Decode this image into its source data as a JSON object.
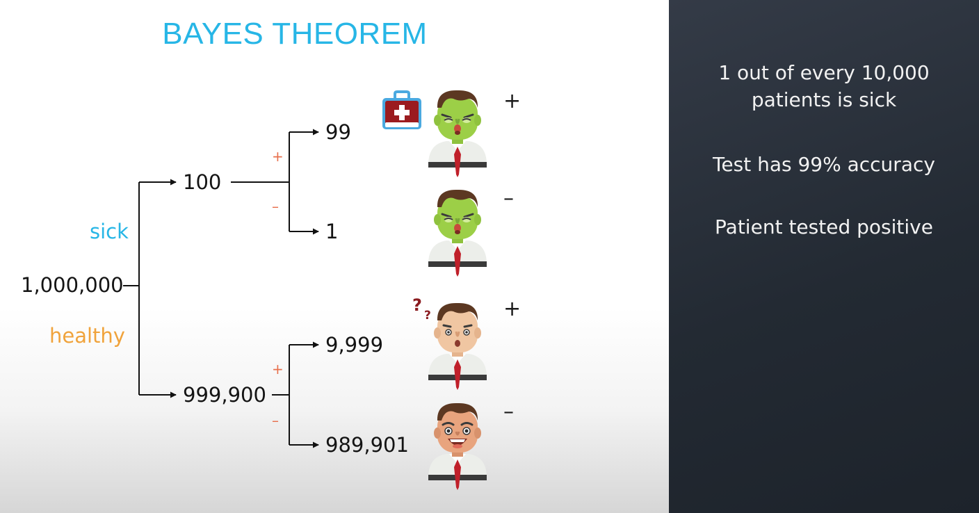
{
  "title": "BAYES THEOREM",
  "tree": {
    "root": "1,000,000",
    "branch_labels": {
      "sick": "sick",
      "healthy": "healthy"
    },
    "sick_count": "100",
    "healthy_count": "999,900",
    "sick_positive": "99",
    "sick_negative": "1",
    "healthy_positive": "9,999",
    "healthy_negative": "989,901",
    "sign_plus": "+",
    "sign_minus": "–"
  },
  "results": {
    "plus": "+",
    "minus": "–"
  },
  "facts": [
    "1 out of every 10,000 patients is sick",
    "Test has 99% accuracy",
    "Patient tested positive"
  ],
  "icons": [
    "first-aid-kit-icon",
    "question-marks-icon"
  ],
  "colors": {
    "title": "#27b6e6",
    "sick": "#27b6e6",
    "healthy": "#f0a33c",
    "signs": "#e8704d",
    "panel": "#262c35",
    "sick_skin": "#9ccf47",
    "healthy_skin": "#f0c6a2",
    "happy_skin": "#e8a47e",
    "tie": "#c0202a"
  }
}
